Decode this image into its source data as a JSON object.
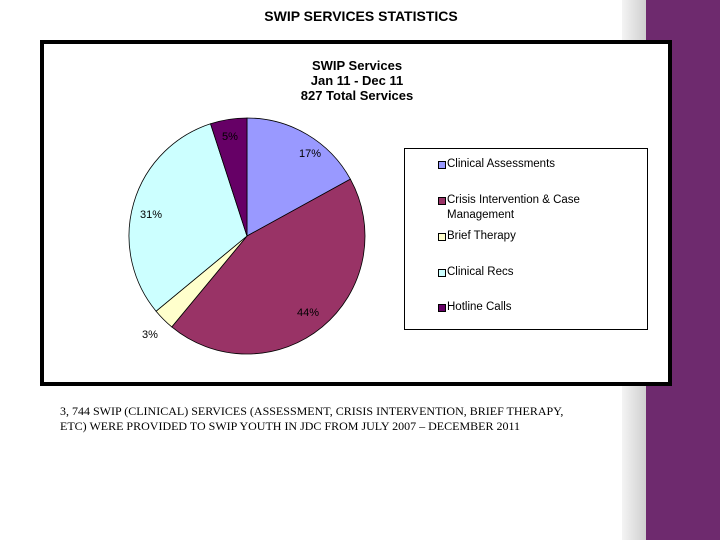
{
  "slide": {
    "title": "SWIP SERVICES STATISTICS",
    "caption": "3, 744 SWIP (CLINICAL) SERVICES (ASSESSMENT, CRISIS INTERVENTION, BRIEF THERAPY, ETC) WERE PROVIDED TO SWIP YOUTH IN JDC FROM JULY 2007 – DECEMBER 2011"
  },
  "colors": {
    "background": "#ffffff",
    "accent_band": "#6e2a6e"
  },
  "chart_data": {
    "type": "pie",
    "title_lines": [
      "SWIP Services",
      "Jan 11 - Dec 11",
      "827 Total Services"
    ],
    "slices": [
      {
        "label": "Clinical Assessments",
        "value": 17,
        "display": "17%",
        "color": "#9999ff"
      },
      {
        "label": "Crisis Intervention & Case Management",
        "value": 44,
        "display": "44%",
        "color": "#993366"
      },
      {
        "label": "Brief Therapy",
        "value": 3,
        "display": "3%",
        "color": "#ffffcc"
      },
      {
        "label": "Clinical Recs",
        "value": 31,
        "display": "31%",
        "color": "#ccffff"
      },
      {
        "label": "Hotline Calls",
        "value": 5,
        "display": "5%",
        "color": "#660066"
      }
    ],
    "legend": {
      "position": "right",
      "items": [
        {
          "lines": [
            "Clinical Assessments"
          ],
          "color": "#9999ff"
        },
        {
          "lines": [
            "Crisis Intervention & Case",
            "Management"
          ],
          "color": "#993366"
        },
        {
          "lines": [
            "Brief Therapy"
          ],
          "color": "#ffffcc"
        },
        {
          "lines": [
            "Clinical Recs"
          ],
          "color": "#ccffff"
        },
        {
          "lines": [
            "Hotline Calls"
          ],
          "color": "#660066"
        }
      ]
    }
  }
}
